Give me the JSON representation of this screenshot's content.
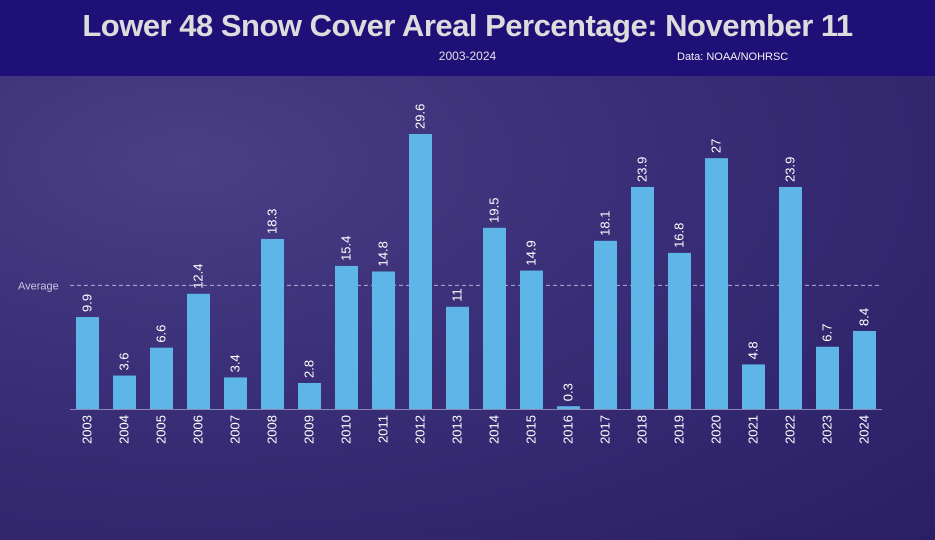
{
  "header": {
    "title": "Lower 48 Snow Cover Areal Percentage: November 11",
    "subtitle": "2003-2024",
    "source": "Data: NOAA/NOHRSC"
  },
  "colors": {
    "header_bg": "#1f1078",
    "bar": "#5eb6e8",
    "text": "#ffffff",
    "average_line": "#b0acd0"
  },
  "chart_data": {
    "type": "bar",
    "title": "Lower 48 Snow Cover Areal Percentage: November 11",
    "subtitle": "2003-2024",
    "categories": [
      "2003",
      "2004",
      "2005",
      "2006",
      "2007",
      "2008",
      "2009",
      "2010",
      "2011",
      "2012",
      "2013",
      "2014",
      "2015",
      "2016",
      "2017",
      "2018",
      "2019",
      "2020",
      "2021",
      "2022",
      "2023",
      "2024"
    ],
    "values": [
      9.9,
      3.6,
      6.6,
      12.4,
      3.4,
      18.3,
      2.8,
      15.4,
      14.8,
      29.6,
      11,
      19.5,
      14.9,
      0.3,
      18.1,
      23.9,
      16.8,
      27,
      4.8,
      23.9,
      6.7,
      8.4
    ],
    "average": {
      "label": "Average",
      "value": 13.3
    },
    "ylim": [
      0,
      29.6
    ],
    "grid": false,
    "data_labels": true
  }
}
